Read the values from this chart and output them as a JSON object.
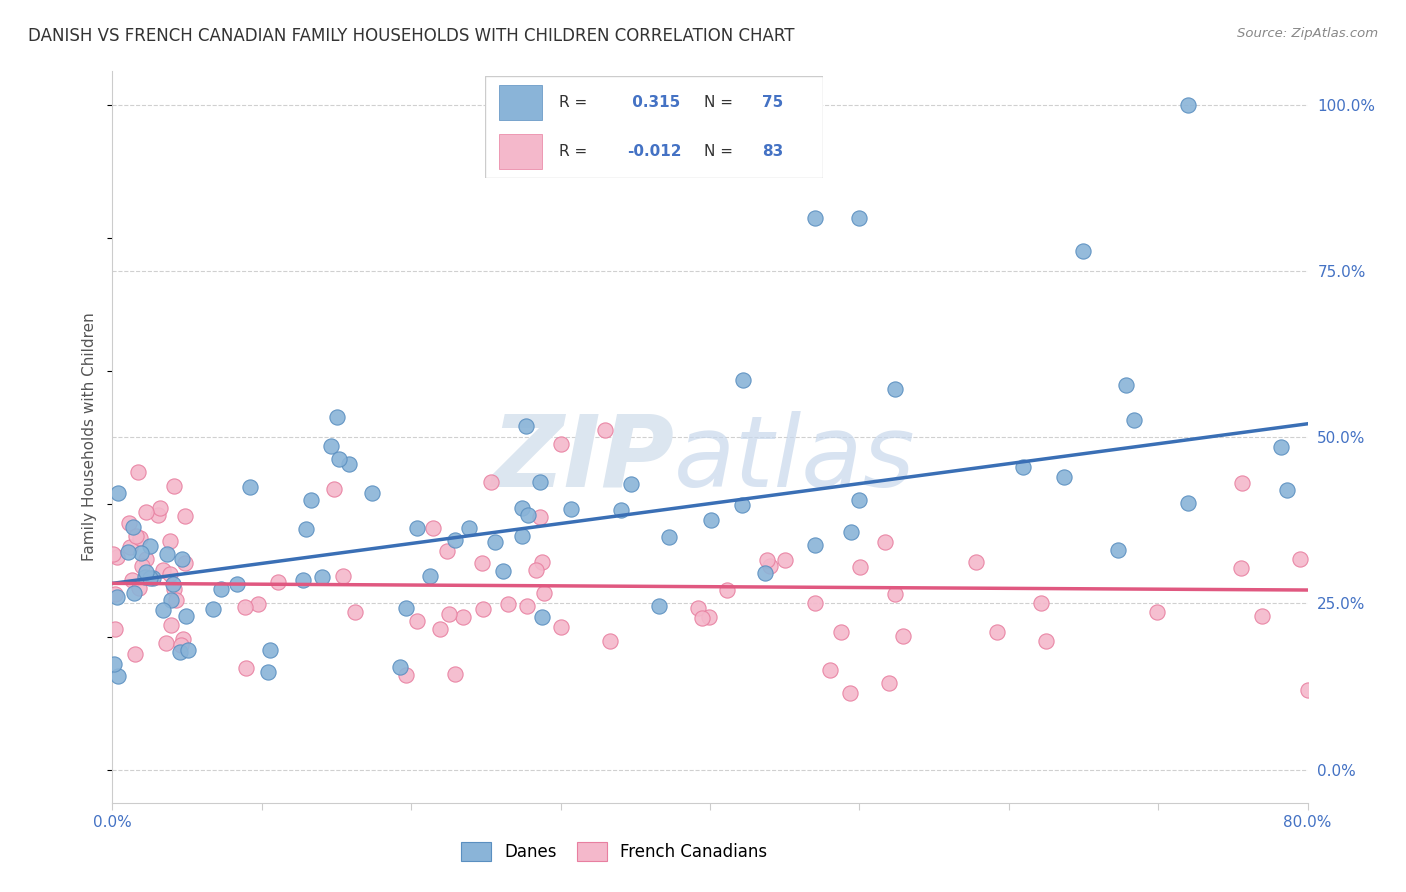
{
  "title": "DANISH VS FRENCH CANADIAN FAMILY HOUSEHOLDS WITH CHILDREN CORRELATION CHART",
  "source": "Source: ZipAtlas.com",
  "ylabel_label": "Family Households with Children",
  "r_danes": 0.315,
  "n_danes": 75,
  "r_french": -0.012,
  "n_french": 83,
  "danes_color": "#8ab4d8",
  "danes_edge_color": "#5a8fc0",
  "french_color": "#f4b8cb",
  "french_edge_color": "#e87fa0",
  "danes_line_color": "#3a6fb5",
  "french_line_color": "#e05880",
  "watermark_zip": "ZIP",
  "watermark_atlas": "atlas",
  "watermark_color": "#dce6f0",
  "xlim": [
    0,
    80
  ],
  "ylim": [
    -5,
    105
  ],
  "danes_line_x": [
    0,
    80
  ],
  "danes_line_y": [
    28,
    52
  ],
  "french_line_x": [
    0,
    80
  ],
  "french_line_y": [
    28,
    27
  ],
  "title_fontsize": 12,
  "background_color": "#ffffff",
  "grid_color": "#d0d0d0",
  "ytick_vals": [
    0,
    25,
    50,
    75,
    100
  ],
  "ytick_labels": [
    "0.0%",
    "25.0%",
    "50.0%",
    "75.0%",
    "100.0%"
  ],
  "xtick_vals": [
    0,
    10,
    20,
    30,
    40,
    50,
    60,
    70,
    80
  ],
  "xtick_labels": [
    "0.0%",
    "",
    "",
    "",
    "",
    "",
    "",
    "",
    "80.0%"
  ]
}
